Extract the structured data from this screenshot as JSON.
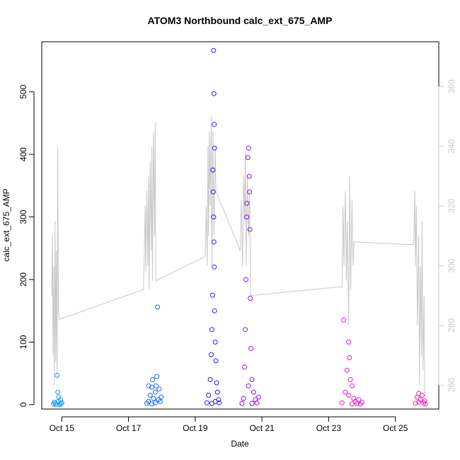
{
  "chart_data": {
    "type": "scatter",
    "title": "ATOM3 Northbound calc_ext_675_AMP",
    "xlabel": "Date",
    "ylabel": "calc_ext_675_AMP",
    "x_ticks": [
      "Oct 15",
      "Oct 17",
      "Oct 19",
      "Oct 21",
      "Oct 23",
      "Oct 25"
    ],
    "x_tick_days": [
      15,
      17,
      19,
      21,
      23,
      25
    ],
    "xlim_days": [
      14.4,
      26.3
    ],
    "y_left": {
      "ticks": [
        0,
        100,
        200,
        300,
        400,
        500
      ],
      "ylim": [
        -7,
        580
      ]
    },
    "y_right": {
      "ticks": [
        260,
        280,
        300,
        320,
        340,
        360
      ],
      "ylim": [
        252,
        375
      ],
      "color": "#c8c8c8"
    },
    "series": [
      {
        "color": "#1aa1ef",
        "points": [
          [
            14.75,
            1
          ],
          [
            14.8,
            2
          ],
          [
            14.83,
            0
          ],
          [
            14.86,
            47
          ],
          [
            14.88,
            20
          ],
          [
            14.9,
            5
          ],
          [
            14.93,
            1
          ],
          [
            14.96,
            8
          ],
          [
            14.98,
            2
          ],
          [
            15.0,
            3
          ],
          [
            14.78,
            4
          ],
          [
            14.91,
            12
          ],
          [
            14.95,
            0
          ]
        ]
      },
      {
        "color": "#1a66f5",
        "points": [
          [
            17.55,
            2
          ],
          [
            17.6,
            5
          ],
          [
            17.65,
            15
          ],
          [
            17.7,
            28
          ],
          [
            17.72,
            40
          ],
          [
            17.75,
            10
          ],
          [
            17.8,
            20
          ],
          [
            17.83,
            30
          ],
          [
            17.85,
            45
          ],
          [
            17.87,
            156
          ],
          [
            17.9,
            8
          ],
          [
            17.92,
            25
          ],
          [
            17.95,
            5
          ],
          [
            17.98,
            12
          ],
          [
            17.6,
            30
          ],
          [
            17.7,
            1
          ],
          [
            17.8,
            3
          ]
        ]
      },
      {
        "color": "#2a1ef0",
        "points": [
          [
            19.35,
            3
          ],
          [
            19.4,
            15
          ],
          [
            19.45,
            40
          ],
          [
            19.48,
            80
          ],
          [
            19.5,
            120
          ],
          [
            19.52,
            175
          ],
          [
            19.55,
            566
          ],
          [
            19.56,
            497
          ],
          [
            19.57,
            448
          ],
          [
            19.58,
            410
          ],
          [
            19.53,
            375
          ],
          [
            19.54,
            340
          ],
          [
            19.55,
            300
          ],
          [
            19.56,
            260
          ],
          [
            19.57,
            220
          ],
          [
            19.58,
            150
          ],
          [
            19.6,
            100
          ],
          [
            19.62,
            70
          ],
          [
            19.64,
            35
          ],
          [
            19.67,
            20
          ],
          [
            19.7,
            8
          ],
          [
            19.72,
            3
          ],
          [
            19.5,
            2
          ],
          [
            19.6,
            5
          ]
        ]
      },
      {
        "color": "#8a10f2",
        "points": [
          [
            20.4,
            2
          ],
          [
            20.45,
            10
          ],
          [
            20.48,
            60
          ],
          [
            20.5,
            120
          ],
          [
            20.52,
            200
          ],
          [
            20.54,
            300
          ],
          [
            20.55,
            322
          ],
          [
            20.58,
            395
          ],
          [
            20.6,
            410
          ],
          [
            20.62,
            365
          ],
          [
            20.63,
            340
          ],
          [
            20.64,
            280
          ],
          [
            20.65,
            170
          ],
          [
            20.67,
            90
          ],
          [
            20.7,
            40
          ],
          [
            20.75,
            20
          ],
          [
            20.8,
            8
          ],
          [
            20.85,
            3
          ],
          [
            20.9,
            12
          ],
          [
            20.6,
            30
          ],
          [
            20.7,
            2
          ]
        ]
      },
      {
        "color": "#d81ad9",
        "points": [
          [
            23.4,
            3
          ],
          [
            23.45,
            135
          ],
          [
            23.5,
            20
          ],
          [
            23.55,
            55
          ],
          [
            23.6,
            100
          ],
          [
            23.62,
            75
          ],
          [
            23.65,
            40
          ],
          [
            23.7,
            30
          ],
          [
            23.75,
            10
          ],
          [
            23.8,
            5
          ],
          [
            23.85,
            2
          ],
          [
            23.9,
            8
          ],
          [
            23.95,
            1
          ],
          [
            24.0,
            4
          ],
          [
            23.6,
            15
          ],
          [
            23.7,
            1
          ]
        ]
      },
      {
        "color": "#f01ab8",
        "points": [
          [
            25.6,
            2
          ],
          [
            25.65,
            12
          ],
          [
            25.7,
            18
          ],
          [
            25.75,
            8
          ],
          [
            25.8,
            15
          ],
          [
            25.85,
            3
          ],
          [
            25.88,
            6
          ],
          [
            25.9,
            1
          ],
          [
            25.7,
            4
          ]
        ]
      }
    ],
    "line_series": {
      "color": "#c8c8c8",
      "axis": "right",
      "points": [
        [
          14.7,
          290
        ],
        [
          14.72,
          310
        ],
        [
          14.74,
          270
        ],
        [
          14.76,
          300
        ],
        [
          14.78,
          260
        ],
        [
          14.8,
          315
        ],
        [
          14.82,
          268
        ],
        [
          14.84,
          305
        ],
        [
          14.86,
          262
        ],
        [
          14.88,
          340
        ],
        [
          14.9,
          285
        ],
        [
          14.92,
          282
        ],
        [
          17.45,
          292
        ],
        [
          17.5,
          320
        ],
        [
          17.52,
          298
        ],
        [
          17.55,
          325
        ],
        [
          17.58,
          300
        ],
        [
          17.6,
          330
        ],
        [
          17.62,
          292
        ],
        [
          17.65,
          335
        ],
        [
          17.68,
          305
        ],
        [
          17.7,
          340
        ],
        [
          17.72,
          295
        ],
        [
          17.75,
          345
        ],
        [
          17.78,
          310
        ],
        [
          17.8,
          348
        ],
        [
          17.82,
          295
        ],
        [
          19.3,
          303
        ],
        [
          19.33,
          320
        ],
        [
          19.36,
          300
        ],
        [
          19.38,
          340
        ],
        [
          19.4,
          310
        ],
        [
          19.42,
          345
        ],
        [
          19.45,
          320
        ],
        [
          19.48,
          350
        ],
        [
          19.5,
          300
        ],
        [
          19.53,
          345
        ],
        [
          19.56,
          310
        ],
        [
          19.6,
          340
        ],
        [
          19.62,
          325
        ],
        [
          20.35,
          305
        ],
        [
          20.38,
          322
        ],
        [
          20.42,
          300
        ],
        [
          20.45,
          330
        ],
        [
          20.48,
          315
        ],
        [
          20.5,
          338
        ],
        [
          20.53,
          300
        ],
        [
          20.56,
          330
        ],
        [
          20.6,
          310
        ],
        [
          20.63,
          325
        ],
        [
          20.66,
          290
        ],
        [
          23.4,
          293
        ],
        [
          23.43,
          320
        ],
        [
          23.46,
          300
        ],
        [
          23.5,
          325
        ],
        [
          23.53,
          295
        ],
        [
          23.56,
          315
        ],
        [
          23.6,
          280
        ],
        [
          23.63,
          330
        ],
        [
          23.66,
          292
        ],
        [
          23.7,
          322
        ],
        [
          23.73,
          300
        ],
        [
          23.76,
          308
        ],
        [
          25.55,
          307
        ],
        [
          25.58,
          325
        ],
        [
          25.6,
          300
        ],
        [
          25.63,
          320
        ],
        [
          25.66,
          280
        ],
        [
          25.7,
          310
        ],
        [
          25.72,
          260
        ],
        [
          25.75,
          300
        ],
        [
          25.78,
          270
        ],
        [
          25.8,
          315
        ],
        [
          25.83,
          265
        ],
        [
          25.86,
          290
        ],
        [
          25.88,
          256
        ]
      ]
    }
  }
}
